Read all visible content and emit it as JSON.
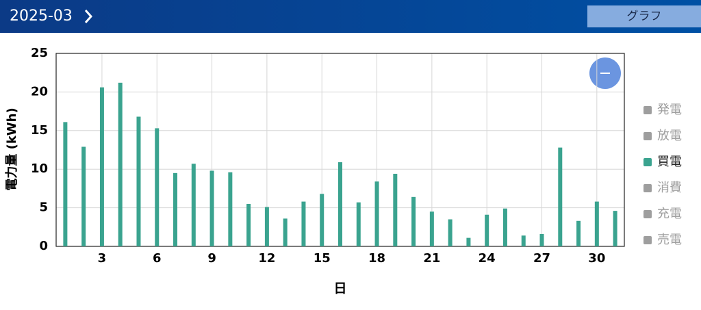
{
  "header": {
    "month": "2025-03",
    "button": "グラフ"
  },
  "chart_data": {
    "type": "bar",
    "x_label": "日",
    "y_label": "電力量 (kWh)",
    "x": [
      1,
      2,
      3,
      4,
      5,
      6,
      7,
      8,
      9,
      10,
      11,
      12,
      13,
      14,
      15,
      16,
      17,
      18,
      19,
      20,
      21,
      22,
      23,
      24,
      25,
      26,
      27,
      28,
      29,
      30,
      31
    ],
    "xlim": [
      0.5,
      31.5
    ],
    "xticks": [
      3,
      6,
      9,
      12,
      15,
      18,
      21,
      24,
      27,
      30
    ],
    "ylim": [
      0,
      25
    ],
    "yticks": [
      0,
      5,
      10,
      15,
      20,
      25
    ],
    "grid": true,
    "series": [
      {
        "name": "発電",
        "color": "#9e9e9e",
        "visible": false
      },
      {
        "name": "放電",
        "color": "#9e9e9e",
        "visible": false
      },
      {
        "name": "買電",
        "color": "#3aa38f",
        "visible": true,
        "values": [
          16.1,
          12.9,
          20.6,
          21.2,
          16.8,
          15.3,
          9.5,
          10.7,
          9.8,
          9.6,
          5.5,
          5.1,
          3.6,
          5.8,
          6.8,
          10.9,
          5.7,
          8.4,
          9.4,
          6.4,
          4.5,
          3.5,
          1.1,
          4.1,
          4.9,
          1.4,
          1.6,
          12.8,
          3.3,
          5.8,
          4.6
        ]
      },
      {
        "name": "消費",
        "color": "#9e9e9e",
        "visible": false
      },
      {
        "name": "充電",
        "color": "#9e9e9e",
        "visible": false
      },
      {
        "name": "売電",
        "color": "#9e9e9e",
        "visible": false
      }
    ]
  }
}
